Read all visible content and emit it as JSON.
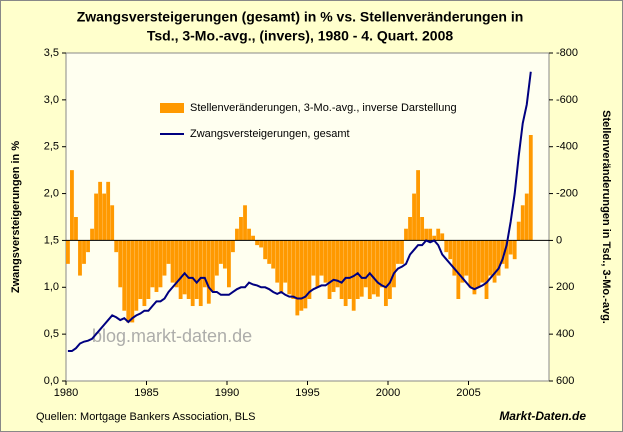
{
  "chart_data": {
    "type": "bar-line",
    "title": [
      "Zwangsversteigerungen (gesamt) in % vs. Stellenveränderungen  in",
      "Tsd., 3-Mo.-avg., (invers), 1980 - 4. Quart. 2008"
    ],
    "y_label": "Zwangsversteigerungen in %",
    "y2_label": "Stellenveränderungen in Tsd., 3-Mo.-avg.",
    "watermark": "blog.markt-daten.de",
    "source": "Quellen: Mortgage Bankers Association, BLS",
    "brand": "Markt-Daten.de",
    "legend_position": "upper center",
    "x": [
      1980,
      1980.25,
      1980.5,
      1980.75,
      1981,
      1981.25,
      1981.5,
      1981.75,
      1982,
      1982.25,
      1982.5,
      1982.75,
      1983,
      1983.25,
      1983.5,
      1983.75,
      1984,
      1984.25,
      1984.5,
      1984.75,
      1985,
      1985.25,
      1985.5,
      1985.75,
      1986,
      1986.25,
      1986.5,
      1986.75,
      1987,
      1987.25,
      1987.5,
      1987.75,
      1988,
      1988.25,
      1988.5,
      1988.75,
      1989,
      1989.25,
      1989.5,
      1989.75,
      1990,
      1990.25,
      1990.5,
      1990.75,
      1991,
      1991.25,
      1991.5,
      1991.75,
      1992,
      1992.25,
      1992.5,
      1992.75,
      1993,
      1993.25,
      1993.5,
      1993.75,
      1994,
      1994.25,
      1994.5,
      1994.75,
      1995,
      1995.25,
      1995.5,
      1995.75,
      1996,
      1996.25,
      1996.5,
      1996.75,
      1997,
      1997.25,
      1997.5,
      1997.75,
      1998,
      1998.25,
      1998.5,
      1998.75,
      1999,
      1999.25,
      1999.5,
      1999.75,
      2000,
      2000.25,
      2000.5,
      2000.75,
      2001,
      2001.25,
      2001.5,
      2001.75,
      2002,
      2002.25,
      2002.5,
      2002.75,
      2003,
      2003.25,
      2003.5,
      2003.75,
      2004,
      2004.25,
      2004.5,
      2004.75,
      2005,
      2005.25,
      2005.5,
      2005.75,
      2006,
      2006.25,
      2006.5,
      2006.75,
      2007,
      2007.25,
      2007.5,
      2007.75,
      2008,
      2008.25,
      2008.5,
      2008.75
    ],
    "series": [
      {
        "name": "Stellenveränderungen, 3-Mo.-avg., inverse Darstellung",
        "kind": "bar",
        "axis": "y2",
        "color": "#ff9900",
        "values": [
          100,
          -300,
          -100,
          150,
          100,
          50,
          -50,
          -200,
          -250,
          -200,
          -250,
          -150,
          50,
          200,
          300,
          350,
          350,
          300,
          250,
          280,
          250,
          200,
          220,
          200,
          150,
          100,
          180,
          200,
          250,
          230,
          250,
          280,
          250,
          280,
          200,
          270,
          220,
          150,
          100,
          120,
          200,
          50,
          -50,
          -100,
          -150,
          -50,
          -20,
          20,
          30,
          80,
          100,
          120,
          180,
          220,
          180,
          230,
          250,
          320,
          300,
          290,
          250,
          150,
          200,
          150,
          180,
          250,
          220,
          200,
          250,
          280,
          250,
          300,
          250,
          240,
          200,
          250,
          230,
          240,
          200,
          280,
          250,
          200,
          100,
          100,
          -50,
          -100,
          -200,
          -300,
          -100,
          -50,
          -50,
          -20,
          -50,
          -30,
          50,
          80,
          150,
          250,
          180,
          150,
          200,
          230,
          200,
          180,
          250,
          150,
          180,
          150,
          100,
          120,
          60,
          80,
          -80,
          -150,
          -200,
          -450
        ]
      },
      {
        "name": "Zwangsversteigerungen, gesamt",
        "kind": "line",
        "axis": "y",
        "color": "#000080",
        "values": [
          0.32,
          0.32,
          0.35,
          0.4,
          0.42,
          0.43,
          0.45,
          0.5,
          0.55,
          0.6,
          0.65,
          0.7,
          0.68,
          0.65,
          0.67,
          0.63,
          0.67,
          0.7,
          0.72,
          0.75,
          0.75,
          0.8,
          0.85,
          0.85,
          0.88,
          0.95,
          1.0,
          1.05,
          1.1,
          1.15,
          1.1,
          1.1,
          1.05,
          1.1,
          1.1,
          1.0,
          0.95,
          0.95,
          0.92,
          0.92,
          0.92,
          0.95,
          0.98,
          1.0,
          1.0,
          1.05,
          1.03,
          1.02,
          1.0,
          1.0,
          0.98,
          0.95,
          0.93,
          0.95,
          0.92,
          0.9,
          0.9,
          0.88,
          0.88,
          0.9,
          0.95,
          0.98,
          1.0,
          1.02,
          1.02,
          1.05,
          1.08,
          1.07,
          1.05,
          1.1,
          1.1,
          1.12,
          1.15,
          1.1,
          1.1,
          1.15,
          1.1,
          1.05,
          1.02,
          1.0,
          1.05,
          1.15,
          1.2,
          1.22,
          1.25,
          1.35,
          1.4,
          1.45,
          1.45,
          1.5,
          1.48,
          1.5,
          1.45,
          1.35,
          1.3,
          1.25,
          1.2,
          1.15,
          1.1,
          1.05,
          1.0,
          0.98,
          1.0,
          1.02,
          1.05,
          1.1,
          1.15,
          1.2,
          1.3,
          1.45,
          1.7,
          2.0,
          2.4,
          2.75,
          2.95,
          3.3
        ]
      }
    ],
    "xlim": [
      1980,
      2010
    ],
    "xticks": [
      1980,
      1985,
      1990,
      1995,
      2000,
      2005
    ],
    "ylim": [
      0,
      3.5
    ],
    "yticks": [
      {
        "value": 0,
        "label": "0,0"
      },
      {
        "value": 0.5,
        "label": "0,5"
      },
      {
        "value": 1,
        "label": "1,0"
      },
      {
        "value": 1.5,
        "label": "1,5"
      },
      {
        "value": 2,
        "label": "2,0"
      },
      {
        "value": 2.5,
        "label": "2,5"
      },
      {
        "value": 3,
        "label": "3,0"
      },
      {
        "value": 3.5,
        "label": "3,5"
      }
    ],
    "y2lim": [
      600,
      -800
    ],
    "y2ticks": [
      600,
      400,
      200,
      0,
      -200,
      -400,
      -600,
      -800
    ]
  }
}
